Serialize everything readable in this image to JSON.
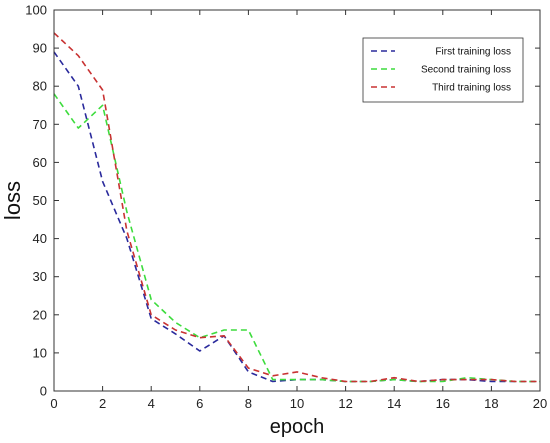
{
  "chart_data": {
    "type": "line",
    "title": "",
    "xlabel": "epoch",
    "ylabel": "loss",
    "xlim": [
      0,
      20
    ],
    "ylim": [
      0,
      100
    ],
    "xticks": [
      0,
      2,
      4,
      6,
      8,
      10,
      12,
      14,
      16,
      18,
      20
    ],
    "yticks": [
      0,
      10,
      20,
      30,
      40,
      50,
      60,
      70,
      80,
      90,
      100
    ],
    "grid": false,
    "legend_position": "top-right",
    "line_style": "dashed",
    "series": [
      {
        "name": "First training loss",
        "color": "#2a2a9c",
        "x": [
          0,
          1,
          2,
          3,
          4,
          5,
          6,
          7,
          8,
          9,
          10,
          11,
          12,
          13,
          14,
          15,
          16,
          17,
          18,
          19,
          20
        ],
        "y": [
          89,
          80,
          55,
          40,
          19,
          15,
          10.5,
          14.5,
          5,
          2.5,
          3,
          3,
          2.5,
          2.5,
          3,
          2.5,
          3,
          3,
          2.5,
          2.5,
          2.5
        ]
      },
      {
        "name": "Second training loss",
        "color": "#3ddc3d",
        "x": [
          0,
          1,
          2,
          3,
          4,
          5,
          6,
          7,
          8,
          9,
          10,
          11,
          12,
          13,
          14,
          15,
          16,
          17,
          18,
          19,
          20
        ],
        "y": [
          78,
          69,
          75,
          47,
          24,
          18,
          14,
          16,
          16,
          3,
          3,
          3,
          2.5,
          2.5,
          3,
          2.5,
          2.5,
          3.5,
          3,
          2.5,
          2.5
        ]
      },
      {
        "name": "Third training loss",
        "color": "#c83232",
        "x": [
          0,
          1,
          2,
          3,
          4,
          5,
          6,
          7,
          8,
          9,
          10,
          11,
          12,
          13,
          14,
          15,
          16,
          17,
          18,
          19,
          20
        ],
        "y": [
          94,
          88,
          79,
          42,
          20,
          16,
          14,
          14.5,
          6,
          4,
          5,
          3.5,
          2.5,
          2.5,
          3.5,
          2.5,
          3,
          3,
          3,
          2.5,
          2.5
        ]
      }
    ]
  }
}
